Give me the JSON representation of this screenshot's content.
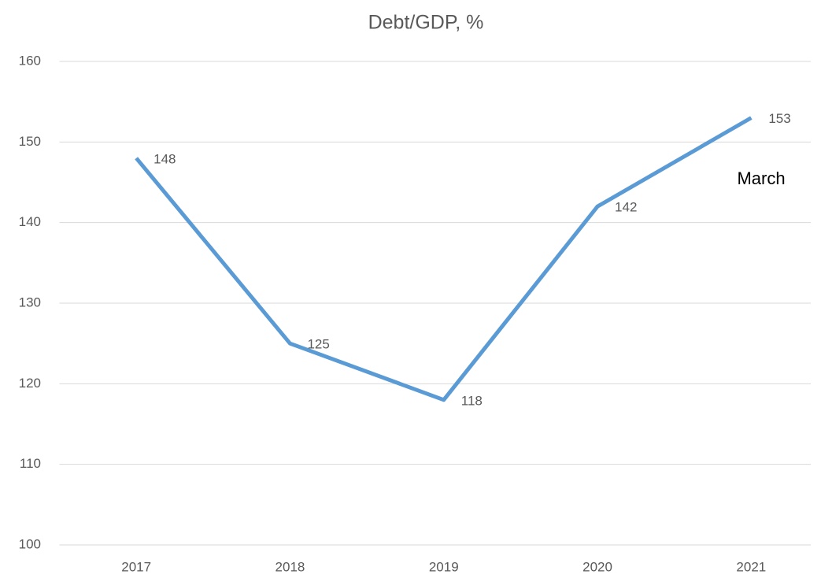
{
  "chart_data": {
    "type": "line",
    "title": "Debt/GDP, %",
    "categories": [
      "2017",
      "2018",
      "2019",
      "2020",
      "2021"
    ],
    "values": [
      148,
      125,
      118,
      142,
      153
    ],
    "color": "#5b9bd5",
    "ylim": [
      100,
      160
    ],
    "yticks": [
      100,
      110,
      120,
      130,
      140,
      150,
      160
    ],
    "grid": true,
    "annotations": [
      {
        "text": "March"
      }
    ]
  }
}
